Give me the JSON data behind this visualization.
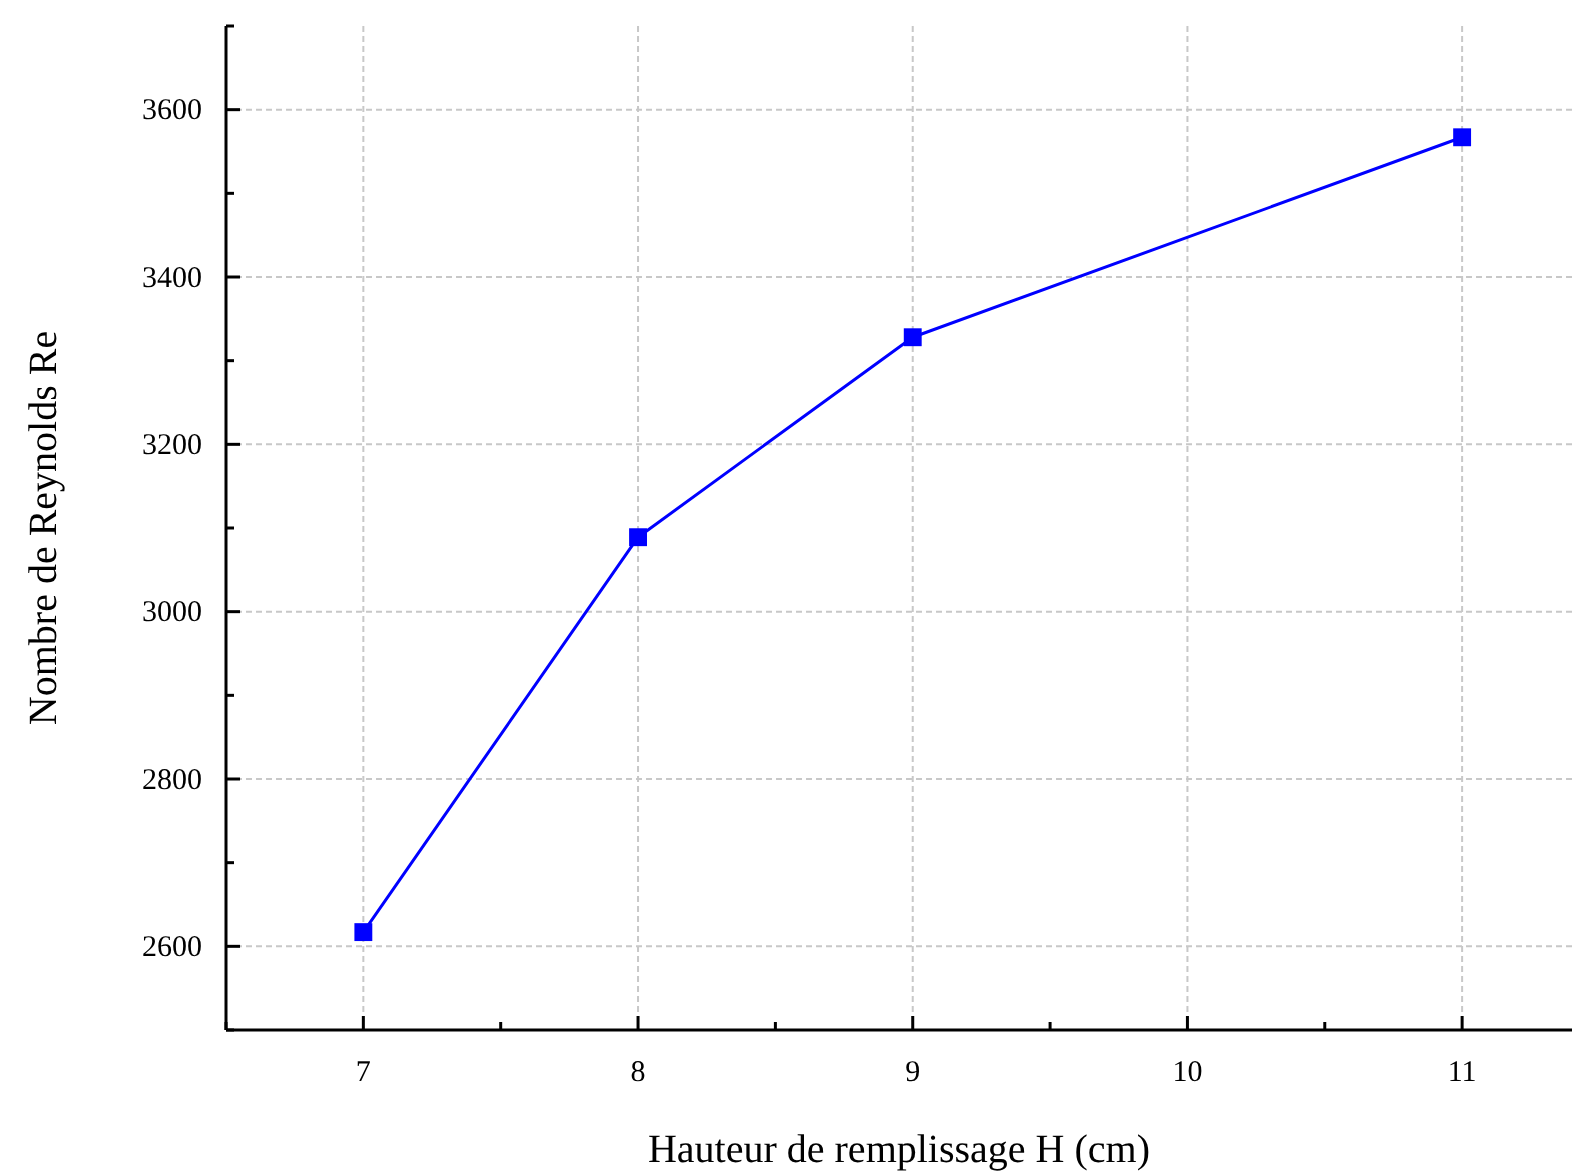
{
  "chart_data": {
    "type": "line",
    "xlabel": "Hauteur de remplissage H (cm)",
    "ylabel": "Nombre de Reynolds Re",
    "x": [
      7,
      8,
      9,
      11
    ],
    "series": [
      {
        "color": "#0000ff",
        "values": [
          2617,
          3089,
          3328,
          3567
        ]
      }
    ],
    "xlim": [
      6.5,
      11.4
    ],
    "ylim": [
      2500,
      3700
    ],
    "xticks": [
      {
        "value": 6.5,
        "label": null
      },
      7,
      {
        "value": 7.5,
        "label": null
      },
      8,
      {
        "value": 8.5,
        "label": null
      },
      9,
      {
        "value": 9.5,
        "label": null
      },
      10,
      {
        "value": 10.5,
        "label": null
      },
      11
    ],
    "yticks": [
      {
        "value": 2500,
        "label": null
      },
      2600,
      {
        "value": 2700,
        "label": null
      },
      2800,
      {
        "value": 2900,
        "label": null
      },
      3000,
      {
        "value": 3100,
        "label": null
      },
      3200,
      {
        "value": 3300,
        "label": null
      },
      3400,
      {
        "value": 3500,
        "label": null
      },
      3600,
      {
        "value": 3700,
        "label": null
      }
    ],
    "grid": true,
    "marker": "square",
    "line_style": "solid"
  }
}
